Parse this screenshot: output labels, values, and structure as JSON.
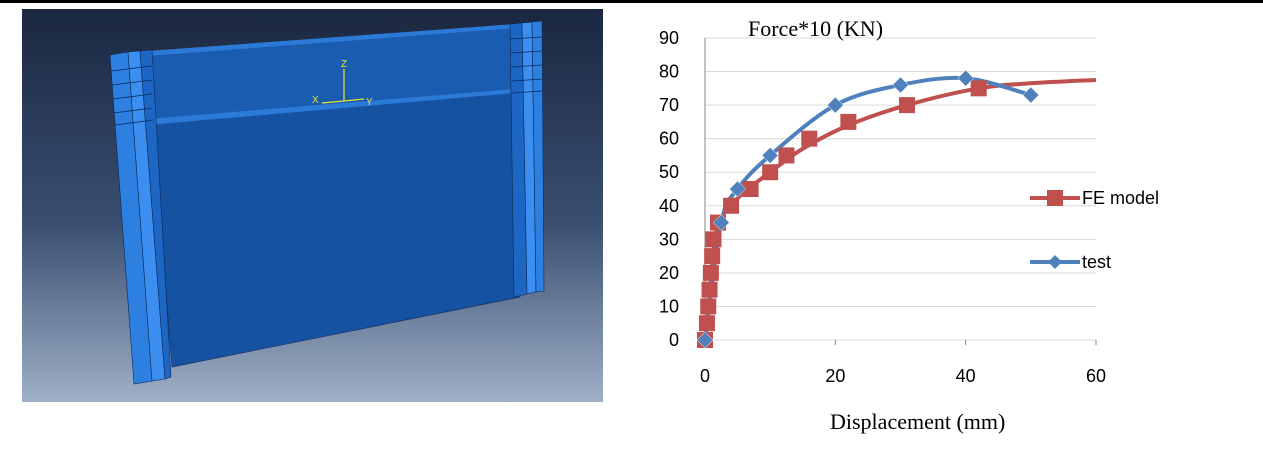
{
  "model_view": {
    "axis_triad": {
      "z": "Z",
      "x": "X",
      "y": "Y"
    }
  },
  "chart_data": {
    "type": "line",
    "ylabel": "Force*10 (KN)",
    "xlabel": "Displacement (mm)",
    "xlim": [
      0,
      60
    ],
    "ylim": [
      0,
      90
    ],
    "xticks": [
      "0",
      "20",
      "40",
      "60"
    ],
    "yticks": [
      "0",
      "10",
      "20",
      "30",
      "40",
      "50",
      "60",
      "70",
      "80",
      "90"
    ],
    "grid": true,
    "legend_position": "right",
    "series": [
      {
        "name": "FE model",
        "color": "#c0504d",
        "marker": "square",
        "smooth_line": true,
        "points": [
          [
            0,
            0
          ],
          [
            0.3,
            5
          ],
          [
            0.5,
            10
          ],
          [
            0.7,
            15
          ],
          [
            0.9,
            20
          ],
          [
            1.1,
            25
          ],
          [
            1.3,
            30
          ],
          [
            2,
            35
          ],
          [
            4,
            40
          ],
          [
            7,
            45
          ],
          [
            10,
            50
          ],
          [
            12.5,
            55
          ],
          [
            16,
            60
          ],
          [
            22,
            65
          ],
          [
            31,
            70
          ],
          [
            42,
            75
          ]
        ],
        "line_points": [
          [
            0,
            0
          ],
          [
            0.6,
            10
          ],
          [
            1.1,
            22
          ],
          [
            1.7,
            32
          ],
          [
            3,
            38
          ],
          [
            6,
            44
          ],
          [
            10,
            50
          ],
          [
            15,
            57
          ],
          [
            22,
            64
          ],
          [
            31,
            70
          ],
          [
            42,
            75
          ],
          [
            50,
            76.5
          ],
          [
            60,
            77.5
          ]
        ]
      },
      {
        "name": "test",
        "color": "#4f81bd",
        "marker": "diamond",
        "points": [
          [
            0,
            0
          ],
          [
            2.5,
            35
          ],
          [
            5,
            45
          ],
          [
            10,
            55
          ],
          [
            20,
            70
          ],
          [
            30,
            76
          ],
          [
            40,
            78
          ],
          [
            50,
            73
          ]
        ]
      }
    ]
  }
}
